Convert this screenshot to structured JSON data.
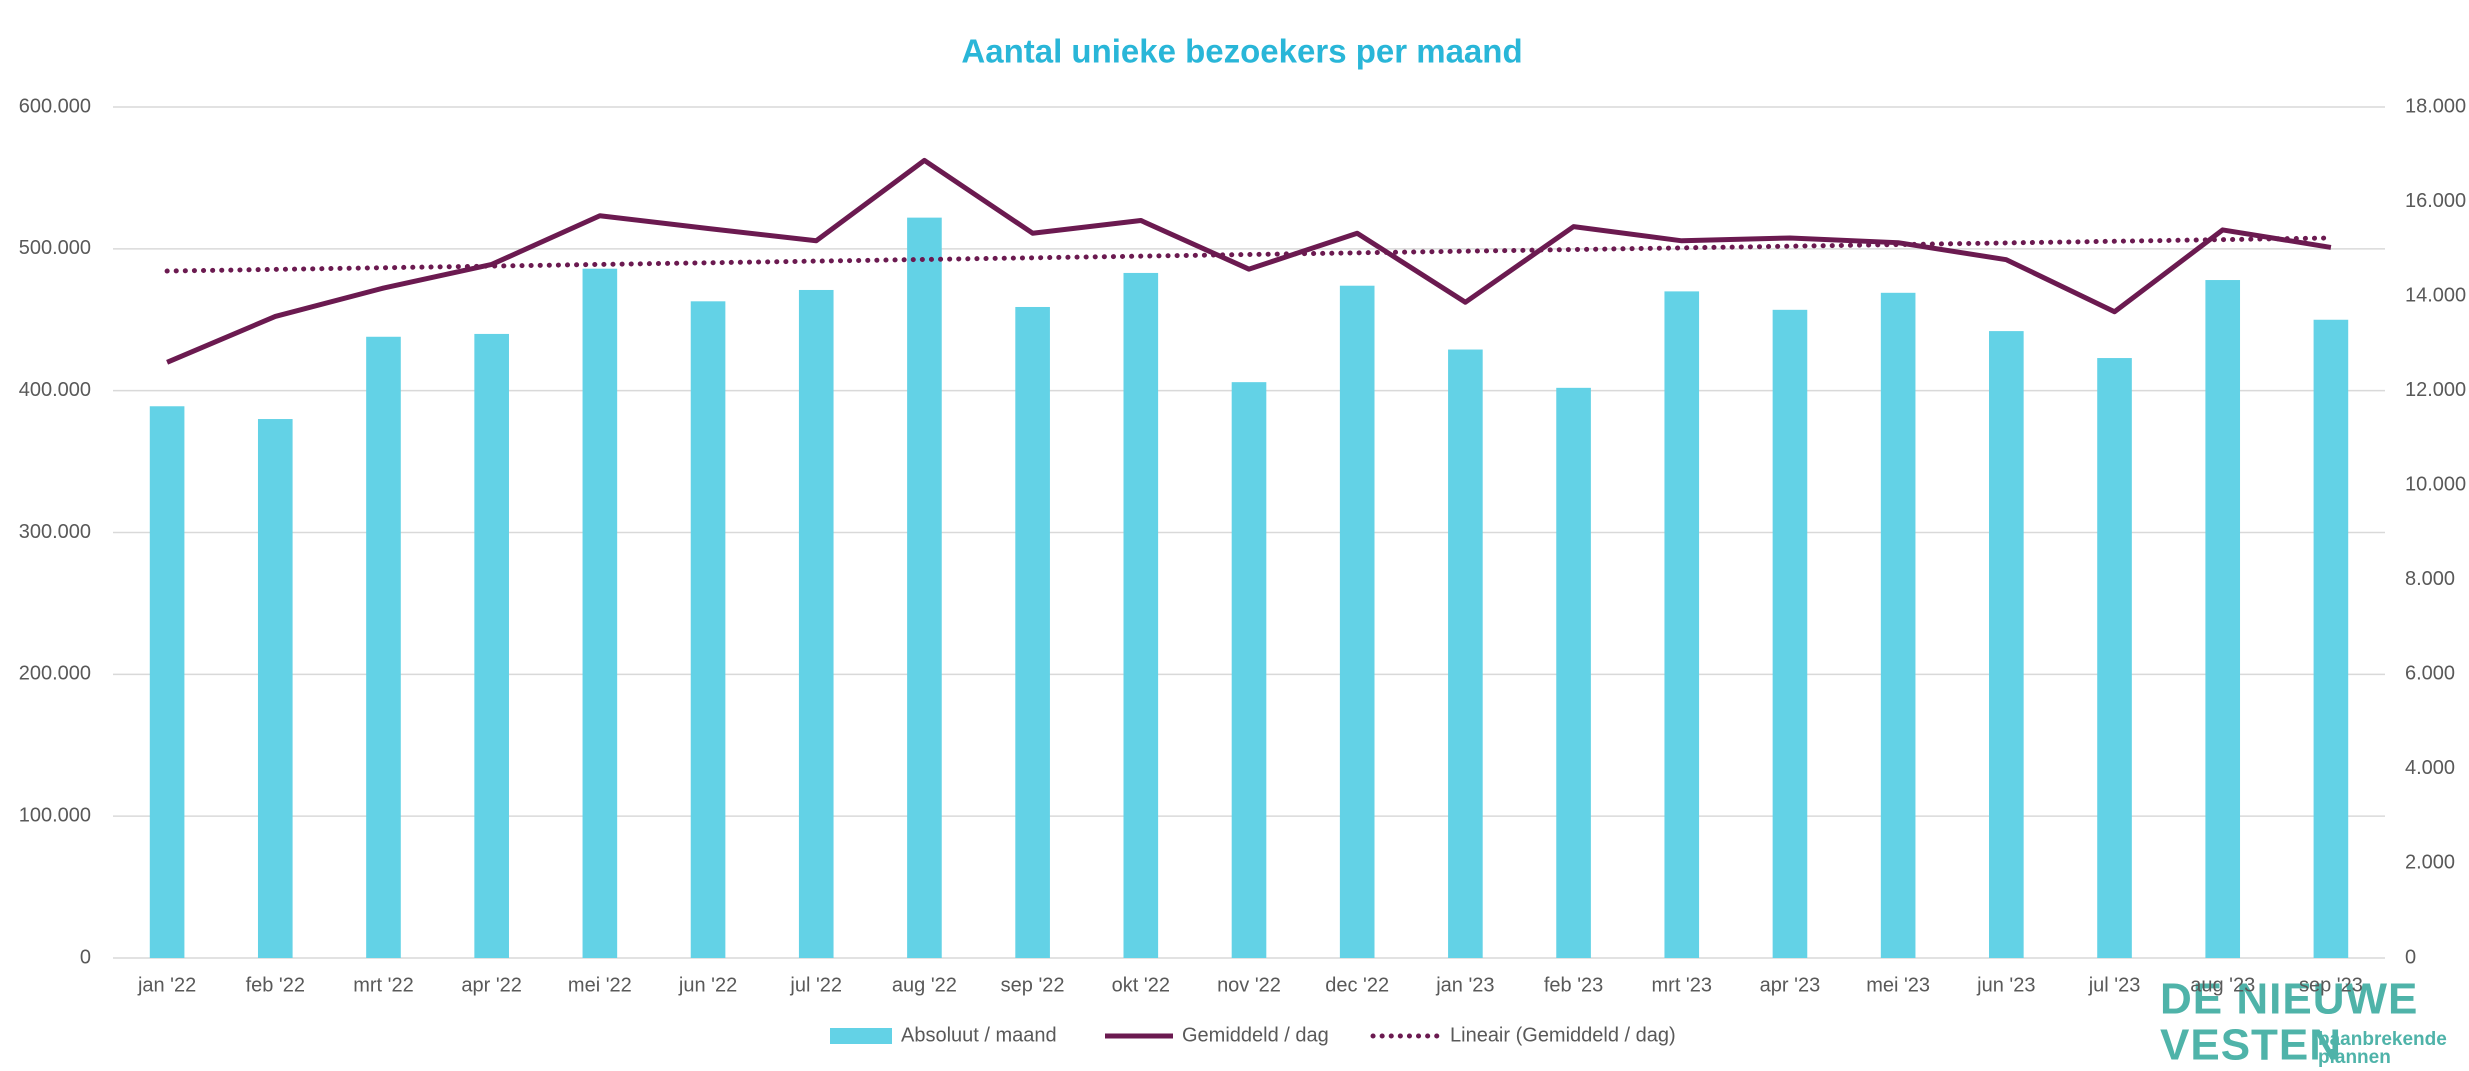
{
  "chart_data": {
    "type": "bar_line",
    "title": "Aantal unieke bezoekers per maand",
    "categories": [
      "jan '22",
      "feb '22",
      "mrt '22",
      "apr '22",
      "mei '22",
      "jun '22",
      "jul '22",
      "aug '22",
      "sep '22",
      "okt '22",
      "nov '22",
      "dec '22",
      "jan '23",
      "feb '23",
      "mrt '23",
      "apr '23",
      "mei '23",
      "jun '23",
      "jul '23",
      "aug '23",
      "sep '23"
    ],
    "series": [
      {
        "name": "Absoluut / maand",
        "kind": "bar",
        "axis": "y",
        "color": "#63d2e6",
        "values": [
          389000,
          380000,
          438000,
          440000,
          486000,
          463000,
          471000,
          522000,
          459000,
          483000,
          406000,
          474000,
          429000,
          402000,
          470000,
          457000,
          469000,
          442000,
          423000,
          478000,
          450000
        ]
      },
      {
        "name": "Gemiddeld / dag",
        "kind": "line",
        "axis": "y2",
        "color": "#6b1a50",
        "values": [
          12600,
          13570,
          14170,
          14670,
          15700,
          15430,
          15170,
          16870,
          15330,
          15600,
          14570,
          15330,
          13870,
          15470,
          15170,
          15230,
          15130,
          14770,
          13670,
          15400,
          15030
        ]
      },
      {
        "name": "Lineair (Gemiddeld / dag)",
        "kind": "dotted",
        "axis": "y2",
        "color": "#6b1a50",
        "values": [
          14530,
          14565,
          14600,
          14635,
          14670,
          14705,
          14740,
          14775,
          14810,
          14845,
          14880,
          14915,
          14950,
          14985,
          15020,
          15055,
          15090,
          15125,
          15160,
          15195,
          15230
        ]
      }
    ],
    "ylim": [
      0,
      600000
    ],
    "yticks": [
      0,
      {
        "value": 100000,
        "label": "100.000"
      },
      {
        "value": 200000,
        "label": "200.000"
      },
      {
        "value": 300000,
        "label": "300.000"
      },
      {
        "value": 400000,
        "label": "400.000"
      },
      {
        "value": 500000,
        "label": "500.000"
      },
      {
        "value": 600000,
        "label": "600.000"
      }
    ],
    "y2lim": [
      0,
      18000
    ],
    "y2ticks": [
      0,
      {
        "value": 2000,
        "label": "2.000"
      },
      {
        "value": 4000,
        "label": "4.000"
      },
      {
        "value": 6000,
        "label": "6.000"
      },
      {
        "value": 8000,
        "label": "8.000"
      },
      {
        "value": 10000,
        "label": "10.000"
      },
      {
        "value": 12000,
        "label": "12.000"
      },
      {
        "value": 14000,
        "label": "14.000"
      },
      {
        "value": 16000,
        "label": "16.000"
      },
      {
        "value": 18000,
        "label": "18.000"
      }
    ],
    "grid": true,
    "legend": "bottom"
  },
  "logo": {
    "line1": "DE NIEUWE",
    "line2": "VESTEN",
    "tagline1": "baanbrekende",
    "tagline2": "plannen"
  }
}
